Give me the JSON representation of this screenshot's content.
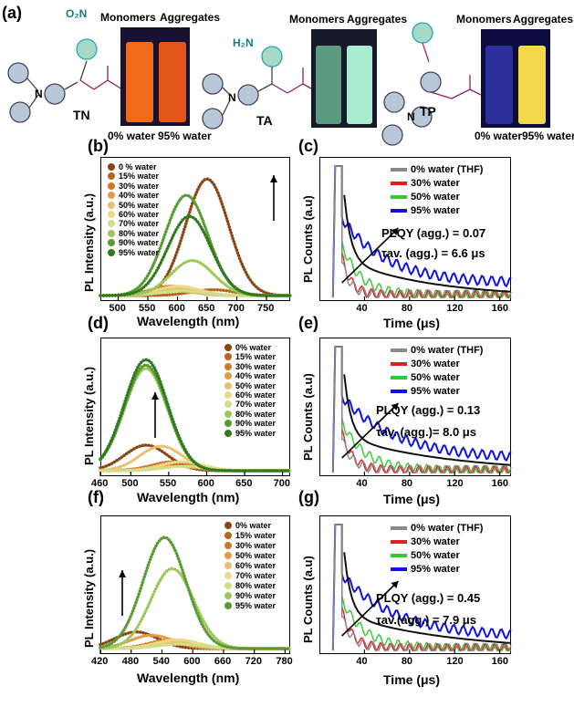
{
  "panel_labels": [
    "(a)",
    "(b)",
    "(c)",
    "(d)",
    "(e)",
    "(f)",
    "(g)"
  ],
  "molecules": [
    {
      "name": "TN",
      "substituent": "O₂N",
      "monomers": "Monomers",
      "aggregates": "Aggregates",
      "vial_colors": [
        "#f06a1a",
        "#e4551a"
      ],
      "water_labels": [
        "0% water",
        "95% water"
      ]
    },
    {
      "name": "TA",
      "substituent": "H₂N",
      "monomers": "Monomers",
      "aggregates": "Aggregates",
      "vial_colors": [
        "#8cd3a8",
        "#a9ecd1"
      ]
    },
    {
      "name": "TP",
      "substituent": "",
      "monomers": "Monomers",
      "aggregates": "Aggregates",
      "vial_colors": [
        "#2a2f9a",
        "#f2d84a"
      ],
      "water_labels": [
        "0% water",
        "95% water"
      ]
    }
  ],
  "pl_panels": [
    {
      "id": "b",
      "xlabel": "Wavelength (nm)",
      "ylabel": "PL Intensity (a.u.)",
      "ticks": [
        "500",
        "550",
        "600",
        "650",
        "700",
        "750"
      ],
      "legend": [
        "0 % water",
        "15% water",
        "30% water",
        "40% water",
        "50% water",
        "60% water",
        "70% water",
        "80% water",
        "90% water",
        "95% water"
      ]
    },
    {
      "id": "d",
      "xlabel": "Wavelength (nm)",
      "ylabel": "PL Intensity (a.u.)",
      "ticks": [
        "460",
        "500",
        "550",
        "600",
        "650",
        "700"
      ],
      "legend": [
        "0% water",
        "15% water",
        "30% water",
        "40% water",
        "50% water",
        "60% water",
        "70% water",
        "80% water",
        "90% water",
        "95% water"
      ]
    },
    {
      "id": "f",
      "xlabel": "Wavelength (nm)",
      "ylabel": "PL Intensity (a.u.)",
      "ticks": [
        "420",
        "480",
        "540",
        "600",
        "660",
        "720",
        "780"
      ],
      "legend": [
        "0% water",
        "15% water",
        "30% water",
        "50% water",
        "60% water",
        "70% water",
        "80% water",
        "90% water",
        "95% water"
      ]
    }
  ],
  "decay_panels": [
    {
      "id": "c",
      "xlabel": "Time (μs)",
      "ylabel": "PL Counts (a.u)",
      "ticks": [
        "40",
        "80",
        "120",
        "160"
      ],
      "legend": [
        "0% water (THF)",
        "30% water",
        "50% water",
        "95% water"
      ],
      "plqy": "PLQY (agg.) = 0.07",
      "tau": "τav. (agg.) = 6.6 μs"
    },
    {
      "id": "e",
      "xlabel": "Time (μs)",
      "ylabel": "PL Counts (a.u)",
      "ticks": [
        "40",
        "80",
        "120",
        "160"
      ],
      "legend": [
        "0% water (THF)",
        "30% water",
        "50% water",
        "95% water"
      ],
      "plqy": "PLQY (agg.) = 0.13",
      "tau": "τav. (agg.)= 8.0 μs"
    },
    {
      "id": "g",
      "xlabel": "Time (μs)",
      "ylabel": "PL Counts (a.u)",
      "ticks": [
        "40",
        "80",
        "120",
        "160"
      ],
      "legend": [
        "0% water (THF)",
        "30% water",
        "50% water",
        "95% water"
      ],
      "plqy": "PLQY (agg.) = 0.45",
      "tau": "τav.(agg.) = 7.9 μs"
    }
  ],
  "water_series_colors": [
    "#8b4513",
    "#b8651e",
    "#cf7a2a",
    "#e19a45",
    "#e8c070",
    "#ecd98a",
    "#cfe08a",
    "#9cc85a",
    "#5a9a34",
    "#2f7a1f"
  ],
  "decay_colors": [
    "#888888",
    "#e02020",
    "#2ecc2e",
    "#1010ee"
  ],
  "chart_data": [
    {
      "type": "scatter",
      "panel": "b",
      "xlim": [
        470,
        790
      ],
      "series": [
        {
          "name": "0 % water",
          "peak_x": 650,
          "peak_y": 1.0
        },
        {
          "name": "90% water",
          "peak_x": 615,
          "peak_y": 0.86
        },
        {
          "name": "95% water",
          "peak_x": 620,
          "peak_y": 0.68
        },
        {
          "name": "80% water",
          "peak_x": 625,
          "peak_y": 0.3
        },
        {
          "name": "15% water",
          "peak_x": 660,
          "peak_y": 0.05
        }
      ]
    },
    {
      "type": "scatter",
      "panel": "d",
      "xlim": [
        460,
        710
      ],
      "series": [
        {
          "name": "95% water",
          "peak_x": 520,
          "peak_y": 1.0
        },
        {
          "name": "90% water",
          "peak_x": 520,
          "peak_y": 0.95
        },
        {
          "name": "80% water",
          "peak_x": 520,
          "peak_y": 0.92
        },
        {
          "name": "0% water",
          "peak_x": 520,
          "peak_y": 0.23
        },
        {
          "name": "50% water",
          "peak_x": 540,
          "peak_y": 0.22
        }
      ]
    },
    {
      "type": "scatter",
      "panel": "f",
      "xlim": [
        420,
        790
      ],
      "series": [
        {
          "name": "95% water",
          "peak_x": 545,
          "peak_y": 1.0
        },
        {
          "name": "90% water",
          "peak_x": 560,
          "peak_y": 0.72
        },
        {
          "name": "0% water",
          "peak_x": 490,
          "peak_y": 0.15
        },
        {
          "name": "50% water",
          "peak_x": 520,
          "peak_y": 0.12
        }
      ]
    },
    {
      "type": "line",
      "panel": "c",
      "xlim": [
        0,
        170
      ],
      "plqy": 0.07,
      "tau_us": 6.6
    },
    {
      "type": "line",
      "panel": "e",
      "xlim": [
        0,
        170
      ],
      "plqy": 0.13,
      "tau_us": 8.0
    },
    {
      "type": "line",
      "panel": "g",
      "xlim": [
        0,
        170
      ],
      "plqy": 0.45,
      "tau_us": 7.9
    }
  ]
}
